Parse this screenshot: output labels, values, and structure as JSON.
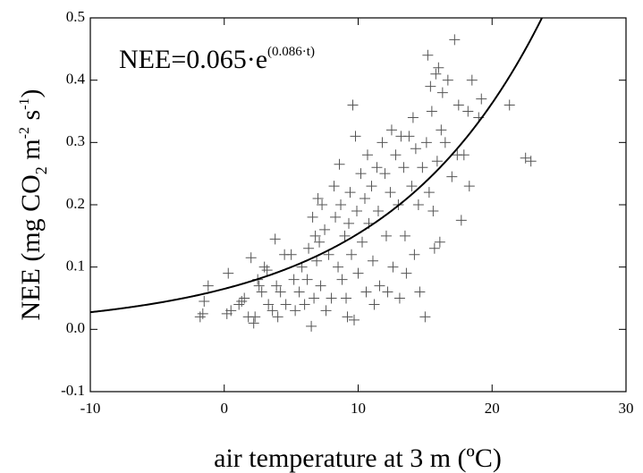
{
  "chart_data": {
    "type": "scatter",
    "annotation": {
      "base": "NEE=0.065·e",
      "exponent": "(0.086·t)"
    },
    "fit": {
      "a": 0.065,
      "b": 0.086,
      "color": "#000000"
    },
    "x_label": "air temperature at 3 m (ºC)",
    "y_label": [
      "NEE (mg CO",
      "2",
      " m",
      "-2",
      " s",
      "-1",
      ")"
    ],
    "xlim": [
      -10,
      30
    ],
    "ylim": [
      -0.1,
      0.5
    ],
    "xticks": [
      -10,
      0,
      10,
      20,
      30
    ],
    "yticks": [
      -0.1,
      {
        "value": 0,
        "label": "0.0"
      },
      0.1,
      0.2,
      0.3,
      0.4,
      0.5
    ],
    "color": "#555555",
    "x": [
      -1.8,
      -1.5,
      -1.2,
      -1.6,
      0.3,
      0.2,
      0.5,
      1.1,
      1.3,
      1.5,
      1.8,
      2.0,
      2.2,
      2.3,
      2.5,
      2.6,
      2.8,
      3.0,
      3.2,
      3.3,
      3.6,
      3.8,
      3.9,
      4.0,
      4.2,
      4.5,
      4.6,
      5.0,
      5.2,
      5.3,
      5.6,
      5.8,
      6.0,
      6.2,
      6.3,
      6.5,
      6.6,
      6.7,
      6.8,
      6.9,
      7.0,
      7.1,
      7.2,
      7.3,
      7.5,
      7.6,
      7.8,
      8.0,
      8.2,
      8.3,
      8.5,
      8.6,
      8.7,
      8.8,
      9.0,
      9.1,
      9.2,
      9.3,
      9.4,
      9.5,
      9.6,
      9.7,
      9.8,
      9.9,
      10.0,
      10.2,
      10.3,
      10.5,
      10.6,
      10.7,
      10.8,
      11.0,
      11.1,
      11.2,
      11.4,
      11.5,
      11.6,
      11.8,
      12.0,
      12.1,
      12.2,
      12.4,
      12.5,
      12.6,
      12.8,
      13.0,
      13.1,
      13.2,
      13.4,
      13.5,
      13.6,
      13.8,
      14.0,
      14.1,
      14.2,
      14.3,
      14.5,
      14.6,
      14.8,
      15.0,
      15.1,
      15.2,
      15.3,
      15.4,
      15.5,
      15.6,
      15.7,
      15.8,
      15.9,
      16.0,
      16.1,
      16.2,
      16.3,
      16.5,
      16.7,
      17.0,
      17.2,
      17.4,
      17.5,
      17.7,
      17.9,
      18.2,
      18.3,
      18.5,
      19.0,
      19.2,
      21.3,
      22.5,
      22.9
    ],
    "values": [
      0.02,
      0.045,
      0.07,
      0.025,
      0.09,
      0.025,
      0.03,
      0.04,
      0.045,
      0.05,
      0.02,
      0.115,
      0.01,
      0.02,
      0.08,
      0.07,
      0.06,
      0.1,
      0.095,
      0.04,
      0.03,
      0.145,
      0.07,
      0.02,
      0.06,
      0.12,
      0.04,
      0.12,
      0.08,
      0.03,
      0.06,
      0.1,
      0.04,
      0.08,
      0.13,
      0.005,
      0.18,
      0.05,
      0.15,
      0.11,
      0.21,
      0.14,
      0.07,
      0.2,
      0.16,
      0.03,
      0.12,
      0.05,
      0.23,
      0.18,
      0.1,
      0.265,
      0.2,
      0.08,
      0.15,
      0.05,
      0.02,
      0.17,
      0.22,
      0.12,
      0.36,
      0.015,
      0.31,
      0.19,
      0.09,
      0.25,
      0.14,
      0.21,
      0.06,
      0.28,
      0.17,
      0.23,
      0.11,
      0.04,
      0.26,
      0.19,
      0.07,
      0.3,
      0.25,
      0.15,
      0.06,
      0.22,
      0.32,
      0.1,
      0.28,
      0.2,
      0.05,
      0.31,
      0.26,
      0.15,
      0.09,
      0.31,
      0.23,
      0.34,
      0.12,
      0.29,
      0.2,
      0.06,
      0.26,
      0.02,
      0.3,
      0.44,
      0.22,
      0.39,
      0.35,
      0.19,
      0.13,
      0.41,
      0.27,
      0.42,
      0.14,
      0.32,
      0.38,
      0.3,
      0.4,
      0.245,
      0.465,
      0.28,
      0.36,
      0.175,
      0.28,
      0.35,
      0.23,
      0.4,
      0.34,
      0.37,
      0.36,
      0.275,
      0.27
    ]
  }
}
